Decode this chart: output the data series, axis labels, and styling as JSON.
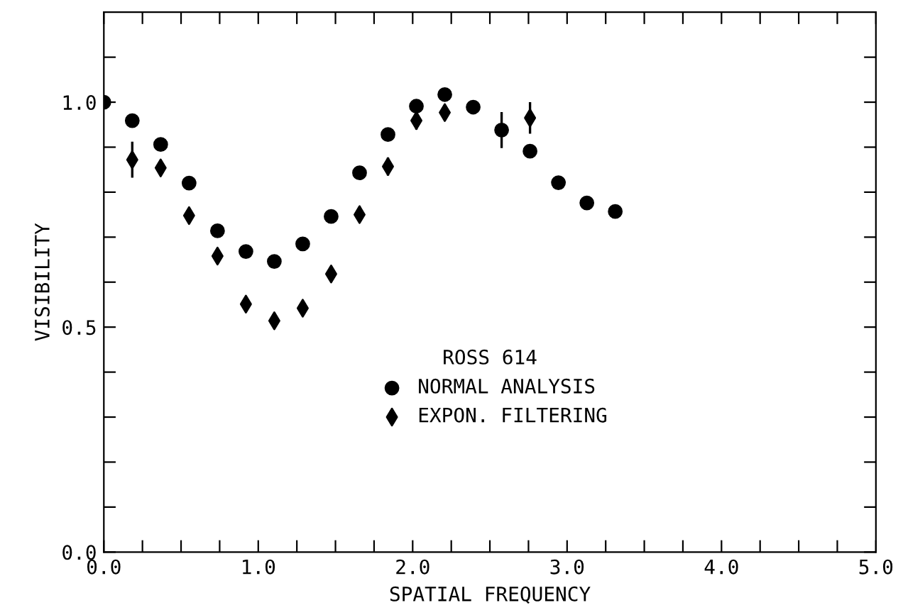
{
  "chart_data": {
    "type": "scatter",
    "xlabel": "SPATIAL FREQUENCY",
    "ylabel": "VISIBILITY",
    "legend_title": "ROSS 614",
    "legend": "bottom",
    "grid": false,
    "xlim": [
      0,
      5
    ],
    "ylim": [
      0,
      1.2
    ],
    "xticks": [
      {
        "value": 0,
        "label": "0.0"
      },
      {
        "value": 0.25,
        "label": null
      },
      {
        "value": 0.5,
        "label": null
      },
      {
        "value": 0.75,
        "label": null
      },
      {
        "value": 1,
        "label": "1.0"
      },
      {
        "value": 1.25,
        "label": null
      },
      {
        "value": 1.5,
        "label": null
      },
      {
        "value": 1.75,
        "label": null
      },
      {
        "value": 2,
        "label": "2.0"
      },
      {
        "value": 2.25,
        "label": null
      },
      {
        "value": 2.5,
        "label": null
      },
      {
        "value": 2.75,
        "label": null
      },
      {
        "value": 3,
        "label": "3.0"
      },
      {
        "value": 3.25,
        "label": null
      },
      {
        "value": 3.5,
        "label": null
      },
      {
        "value": 3.75,
        "label": null
      },
      {
        "value": 4,
        "label": "4.0"
      },
      {
        "value": 4.25,
        "label": null
      },
      {
        "value": 4.5,
        "label": null
      },
      {
        "value": 4.75,
        "label": null
      },
      {
        "value": 5,
        "label": "5.0"
      }
    ],
    "yticks": [
      {
        "value": 0,
        "label": "0.0"
      },
      {
        "value": 0.1,
        "label": null
      },
      {
        "value": 0.2,
        "label": null
      },
      {
        "value": 0.3,
        "label": null
      },
      {
        "value": 0.4,
        "label": null
      },
      {
        "value": 0.5,
        "label": "0.5"
      },
      {
        "value": 0.6,
        "label": null
      },
      {
        "value": 0.7,
        "label": null
      },
      {
        "value": 0.8,
        "label": null
      },
      {
        "value": 0.9,
        "label": null
      },
      {
        "value": 1,
        "label": "1.0"
      },
      {
        "value": 1.1,
        "label": null
      }
    ],
    "x": [
      0,
      0.184,
      0.368,
      0.552,
      0.736,
      0.92,
      1.104,
      1.288,
      1.472,
      1.656,
      1.84,
      2.024,
      2.208,
      2.392,
      2.576,
      2.76,
      2.944,
      3.128,
      3.312
    ],
    "series": [
      {
        "name": "NORMAL ANALYSIS",
        "color": "#000000",
        "marker": "circle",
        "values": [
          1.0,
          0.959,
          0.906,
          0.82,
          0.714,
          0.668,
          0.646,
          0.685,
          0.746,
          0.843,
          0.928,
          0.991,
          1.017,
          0.989,
          0.938,
          0.891,
          0.821,
          0.776,
          0.757
        ],
        "errors": [
          null,
          null,
          null,
          null,
          null,
          null,
          null,
          null,
          null,
          null,
          null,
          null,
          null,
          null,
          0.04,
          null,
          null,
          null,
          null
        ]
      },
      {
        "name": "EXPON. FILTERING",
        "color": "#000000",
        "marker": "diamond",
        "values": [
          null,
          0.872,
          0.854,
          0.748,
          0.658,
          0.551,
          0.514,
          0.542,
          0.618,
          0.75,
          0.857,
          0.959,
          0.977,
          null,
          null,
          0.965,
          null,
          null,
          null
        ],
        "errors": [
          null,
          0.04,
          null,
          null,
          null,
          null,
          null,
          null,
          null,
          null,
          0.02,
          0.02,
          0.015,
          null,
          null,
          0.035,
          null,
          null,
          null
        ]
      }
    ]
  }
}
